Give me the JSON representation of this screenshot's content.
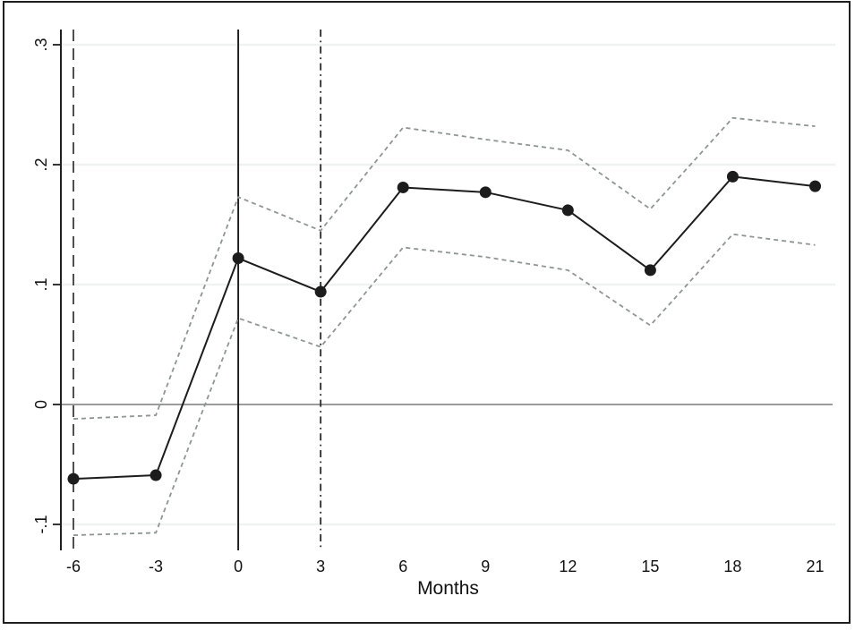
{
  "figure": {
    "background": "#ffffff",
    "border_color": "#1f1f1f"
  },
  "chart_data": {
    "type": "line",
    "title": "",
    "subtitle": "",
    "xlabel": "Months",
    "ylabel": "",
    "x": [
      -6,
      -3,
      0,
      3,
      6,
      9,
      12,
      15,
      18,
      21
    ],
    "series": [
      {
        "name": "point_estimate",
        "role": "estimate-with-markers",
        "line_style": "solid",
        "marker": "filled-circle",
        "color": "#1c1c1c",
        "values": [
          -0.062,
          -0.059,
          0.122,
          0.094,
          0.181,
          0.177,
          0.162,
          0.112,
          0.19,
          0.182
        ]
      },
      {
        "name": "ci_upper",
        "role": "confidence-band-upper",
        "line_style": "dashed",
        "marker": "none",
        "color": "#8f9494",
        "values": [
          -0.012,
          -0.009,
          0.173,
          0.145,
          0.231,
          0.221,
          0.212,
          0.163,
          0.239,
          0.232
        ]
      },
      {
        "name": "ci_lower",
        "role": "confidence-band-lower",
        "line_style": "dashed",
        "marker": "none",
        "color": "#8f9494",
        "values": [
          -0.109,
          -0.107,
          0.072,
          0.048,
          0.131,
          0.123,
          0.112,
          0.066,
          0.142,
          0.133
        ]
      }
    ],
    "x_tick_values": [
      -6,
      -3,
      0,
      3,
      6,
      9,
      12,
      15,
      18,
      21
    ],
    "x_tick_labels": [
      "-6",
      "-3",
      "0",
      "3",
      "6",
      "9",
      "12",
      "15",
      "18",
      "21"
    ],
    "y_tick_values": [
      0.3,
      0.2,
      0.1,
      0,
      -0.1
    ],
    "y_tick_labels": [
      ".3",
      ".2",
      ".1",
      "0",
      "-.1"
    ],
    "y_tick_label_rotation": -90,
    "xlim": [
      -6.45,
      21.73
    ],
    "ylim": [
      -0.122,
      0.313
    ],
    "grid": {
      "horizontal": true,
      "vertical": false,
      "color": "#f0f2f1"
    },
    "reference_lines": {
      "vertical": [
        {
          "x": -6,
          "style": "longdash",
          "color": "#3c3c3c"
        },
        {
          "x": 0,
          "style": "solid",
          "color": "#1a1a1a"
        },
        {
          "x": 3,
          "style": "dashdot",
          "color": "#2a2a2a"
        }
      ],
      "horizontal": [
        {
          "y": 0,
          "style": "solid",
          "color": "#7a7a7a"
        }
      ]
    },
    "legend": {
      "visible": false,
      "entries": []
    },
    "axis_color": "#1f1f1f"
  }
}
